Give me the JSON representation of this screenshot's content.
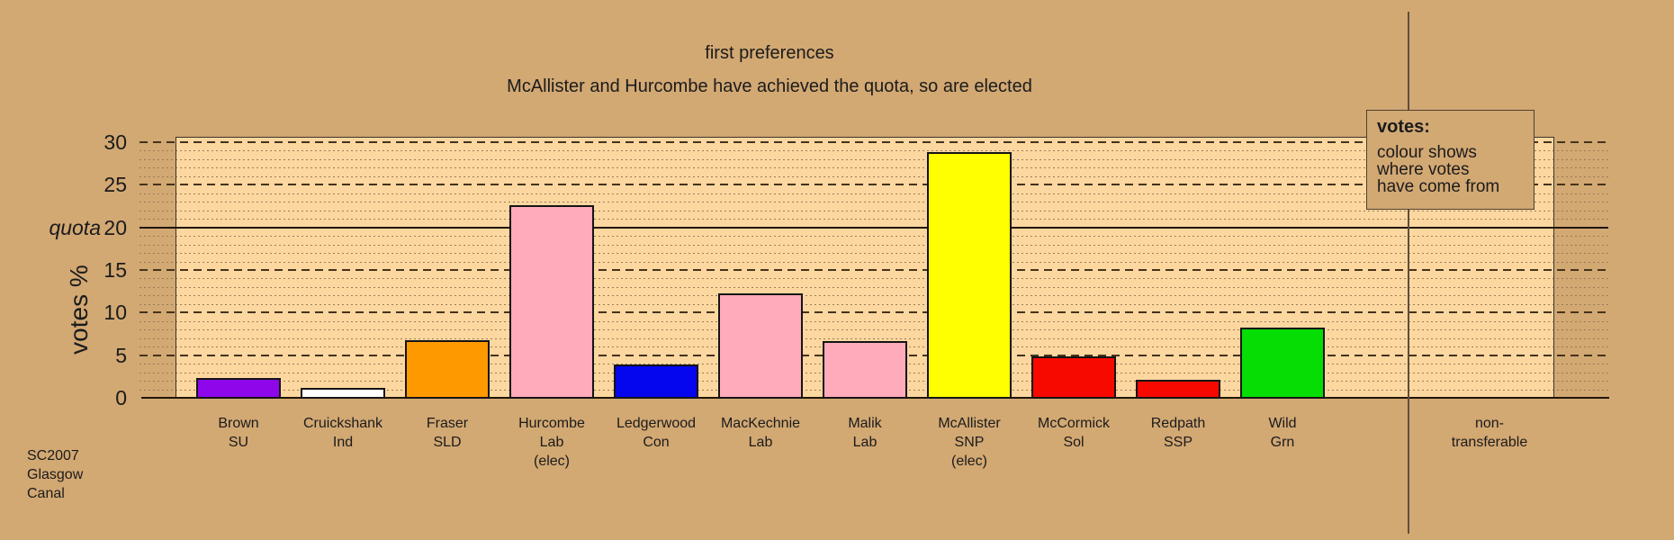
{
  "legend": {
    "heading": "votes:",
    "lines": [
      "colour shows",
      "where votes",
      "have come from"
    ]
  },
  "non_transferable": [
    "non-",
    "transferable"
  ],
  "footer_lines": [
    "SC2007",
    "Glasgow",
    "Canal"
  ],
  "colors": {
    "page_background": "#d2a873",
    "plot_background": "#fdd7a0",
    "axis_line": "#201506",
    "divider_line": "#5c4e3c"
  },
  "chart_data": {
    "type": "bar",
    "title": "first preferences",
    "subtitle": "McAllister and Hurcombe have achieved the quota, so are elected",
    "xlabel": "",
    "ylabel": "votes %",
    "ylim": [
      0,
      30
    ],
    "y_ticks": [
      0,
      5,
      10,
      15,
      20,
      25,
      30
    ],
    "y_major_step": 5,
    "y_minor_step": 1,
    "grid": "major dashed every 5, minor dotted every 1, horizontal only",
    "quota": {
      "value": 20,
      "label": "quota"
    },
    "elected_suffix": "(elec)",
    "legend_position": "top-right",
    "extra_column_label": "non-transferable",
    "bars": [
      {
        "name": "Brown",
        "party": "SU",
        "value": 2.4,
        "color": "#8d07ea",
        "elected": false
      },
      {
        "name": "Cruickshank",
        "party": "Ind",
        "value": 1.3,
        "color": "#ffffff",
        "elected": false
      },
      {
        "name": "Fraser",
        "party": "SLD",
        "value": 6.9,
        "color": "#ff9900",
        "elected": false
      },
      {
        "name": "Hurcombe",
        "party": "Lab",
        "value": 22.7,
        "color": "#ffabbb",
        "elected": true
      },
      {
        "name": "Ledgerwood",
        "party": "Con",
        "value": 4.0,
        "color": "#0505ee",
        "elected": false
      },
      {
        "name": "MacKechnie",
        "party": "Lab",
        "value": 12.4,
        "color": "#ffabbb",
        "elected": false
      },
      {
        "name": "Malik",
        "party": "Lab",
        "value": 6.8,
        "color": "#ffabbb",
        "elected": false
      },
      {
        "name": "McAllister",
        "party": "SNP",
        "value": 28.9,
        "color": "#ffff02",
        "elected": true
      },
      {
        "name": "McCormick",
        "party": "Sol",
        "value": 5.0,
        "color": "#f80900",
        "elected": false
      },
      {
        "name": "Redpath",
        "party": "SSP",
        "value": 2.2,
        "color": "#f80900",
        "elected": false
      },
      {
        "name": "Wild",
        "party": "Grn",
        "value": 8.3,
        "color": "#05dd05",
        "elected": false
      }
    ]
  }
}
